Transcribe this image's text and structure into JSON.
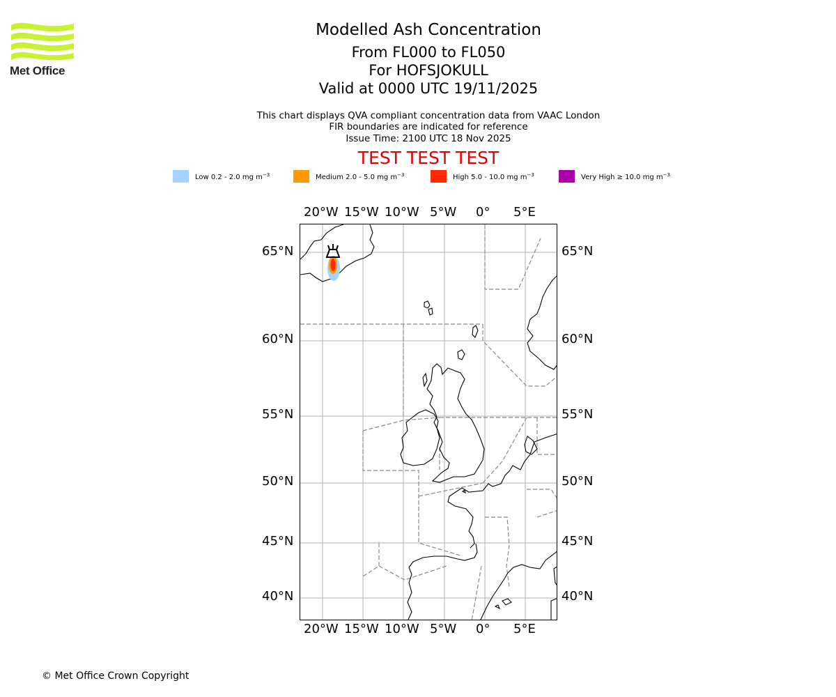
{
  "logo": {
    "text": "Met Office",
    "color": "#c8f231"
  },
  "title": {
    "line1": "Modelled Ash Concentration",
    "line2": "From FL000 to FL050",
    "line3": "For HOFSJOKULL",
    "line4": "Valid at 0000 UTC 19/11/2025"
  },
  "info": {
    "line1": "This chart displays QVA compliant concentration data from VAAC London",
    "line2": "FIR boundaries are indicated for reference",
    "line3": "Issue Time: 2100 UTC 18 Nov 2025"
  },
  "warning": {
    "text": "TEST TEST TEST",
    "color": "#e00000"
  },
  "legend": [
    {
      "name": "Low",
      "label": "Low 0.2 - 2.0 mg m",
      "color": "#a3d4ff"
    },
    {
      "name": "Medium",
      "label": "Medium 2.0 - 5.0 mg m",
      "color": "#ff9900"
    },
    {
      "name": "High",
      "label": "High 5.0 - 10.0 mg m",
      "color": "#ff2a00"
    },
    {
      "name": "Very High",
      "label": "Very High  ≥  10.0 mg m",
      "color": "#aa00aa"
    }
  ],
  "legend_unit_exponent": "−3",
  "axes": {
    "lon_labels": [
      "20°W",
      "15°W",
      "10°W",
      "5°W",
      "0°",
      "5°E"
    ],
    "lat_labels": [
      "65°N",
      "60°N",
      "55°N",
      "50°N",
      "45°N",
      "40°N"
    ]
  },
  "copyright": "© Met Office Crown Copyright"
}
